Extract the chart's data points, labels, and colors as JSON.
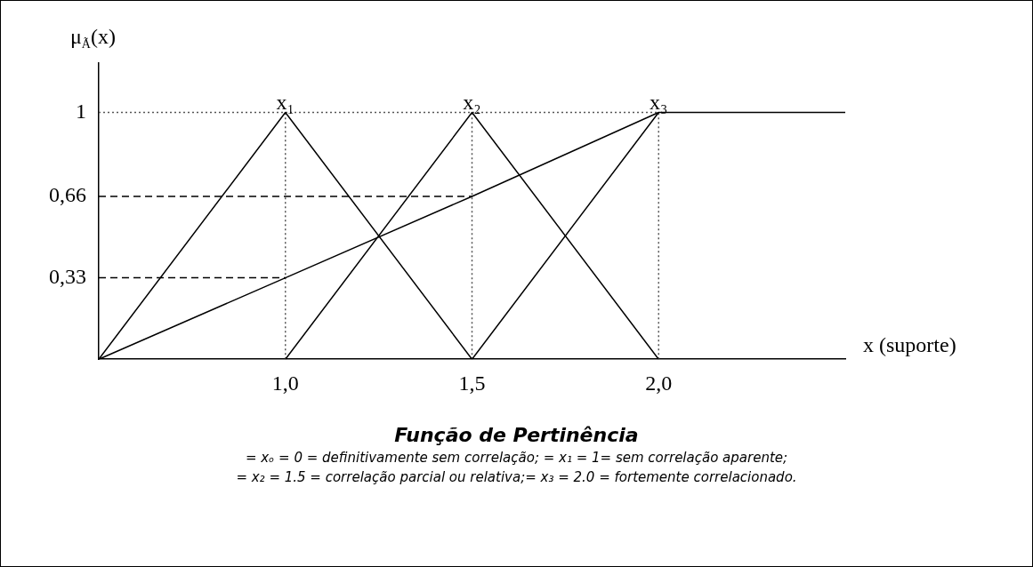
{
  "chart_data": {
    "type": "line",
    "title": "Função de Pertinência",
    "xlabel": "x (suporte)",
    "ylabel": "μ$_{Ã}$(x)",
    "categories": [
      null,
      "1,0",
      "1,5",
      "2,0",
      null
    ],
    "ylim": [
      0,
      1.2
    ],
    "yticks": [
      {
        "value": 0.33,
        "label": "0,33"
      },
      {
        "value": 0.66,
        "label": "0,66"
      },
      {
        "value": 1,
        "label": "1"
      }
    ],
    "grid": false,
    "legend": false,
    "marker": "none",
    "line_style": "solid",
    "series": [
      {
        "color": "#000000",
        "values": [
          0,
          1,
          0,
          null,
          null
        ]
      },
      {
        "color": "#000000",
        "values": [
          null,
          0,
          1,
          0,
          null
        ]
      },
      {
        "color": "#000000",
        "values": [
          null,
          null,
          0,
          1,
          1
        ]
      },
      {
        "color": "#000000",
        "values": [
          0,
          0.33,
          0.66,
          1,
          null
        ]
      },
      {
        "color": "#555555",
        "line_style": "dotted",
        "values": [
          1,
          1,
          1,
          1,
          null
        ]
      },
      {
        "color": "#000000",
        "line_style": "dashed",
        "values": [
          0.66,
          0.66,
          0.66,
          null,
          null
        ]
      },
      {
        "color": "#000000",
        "line_style": "dashed",
        "values": [
          0.33,
          0.33,
          null,
          null,
          null
        ]
      },
      {
        "color": "#555555",
        "line_style": "dotted",
        "x": [
          "1,0",
          "1,0"
        ],
        "values": [
          0,
          1
        ]
      },
      {
        "color": "#555555",
        "line_style": "dotted",
        "x": [
          "1,5",
          "1,5"
        ],
        "values": [
          0,
          1
        ]
      },
      {
        "color": "#555555",
        "line_style": "dotted",
        "x": [
          "2,0",
          "2,0"
        ],
        "values": [
          0,
          1
        ]
      }
    ],
    "annotations": [
      {
        "text": "x₁",
        "x": "1,0",
        "y": 1
      },
      {
        "text": "x₂",
        "x": "1,5",
        "y": 1
      },
      {
        "text": "x₃",
        "x": "2,0",
        "y": 1
      },
      "= xₒ = 0 = definitivamente sem correlação; = x₁ = 1= sem correlação aparente;",
      "= x₂ = 1.5 = correlação parcial ou relativa;= x₃ = 2.0 = fortemente correlacionado."
    ]
  }
}
